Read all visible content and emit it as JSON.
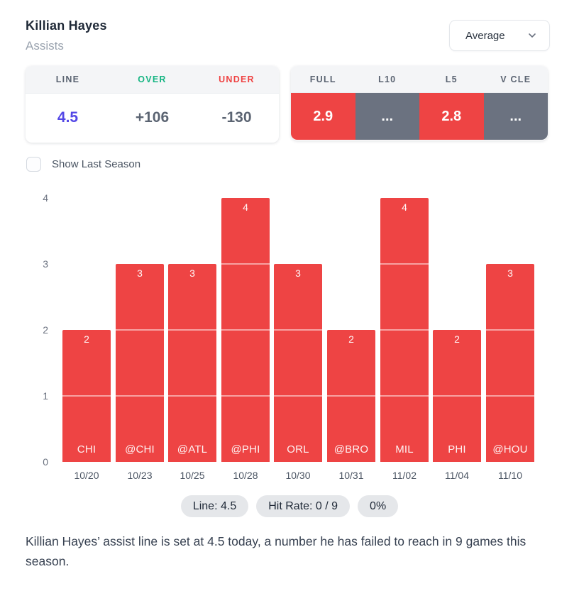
{
  "header": {
    "player": "Killian Hayes",
    "stat": "Assists",
    "average_dropdown": "Average"
  },
  "odds_panel": {
    "columns": [
      {
        "label": "LINE",
        "label_color": "#5b6472",
        "value": "4.5",
        "value_color": "#5347e6"
      },
      {
        "label": "OVER",
        "label_color": "#17b583",
        "value": "+106",
        "value_color": "#5b6472"
      },
      {
        "label": "UNDER",
        "label_color": "#ef4444",
        "value": "-130",
        "value_color": "#5b6472"
      }
    ]
  },
  "splits_panel": {
    "columns": [
      {
        "label": "FULL",
        "value": "2.9",
        "cell_color": "#ee4444"
      },
      {
        "label": "L10",
        "value": "...",
        "cell_color": "#6b7280"
      },
      {
        "label": "L5",
        "value": "2.8",
        "cell_color": "#ee4444"
      },
      {
        "label": "V CLE",
        "value": "...",
        "cell_color": "#6b7280"
      }
    ]
  },
  "show_last_season_label": "Show Last Season",
  "chart_data": {
    "type": "bar",
    "title": "",
    "categories": [
      "CHI",
      "@CHI",
      "@ATL",
      "@PHI",
      "ORL",
      "@BRO",
      "MIL",
      "PHI",
      "@HOU"
    ],
    "x_dates": [
      "10/20",
      "10/23",
      "10/25",
      "10/28",
      "10/30",
      "10/31",
      "11/02",
      "11/04",
      "11/10"
    ],
    "values": [
      2,
      3,
      3,
      4,
      3,
      2,
      4,
      2,
      3
    ],
    "xlabel": "",
    "ylabel": "",
    "ylim": [
      0,
      4
    ],
    "yticks": [
      0,
      1,
      2,
      3,
      4
    ],
    "grid": false,
    "legend": false,
    "bar_color": "#ee4444",
    "segment_line_color": "rgba(255,255,255,0.5)"
  },
  "pills": [
    "Line: 4.5",
    "Hit Rate: 0 / 9",
    "0%"
  ],
  "summary": "Killian Hayes’ assist line is set at 4.5 today, a number he has failed to reach in 9 games this season.",
  "colors": {
    "accent_red": "#ee4444",
    "accent_gray": "#6b7280",
    "accent_indigo": "#5347e6",
    "accent_green": "#17b583",
    "panel_header_bg": "#f4f5f7",
    "pill_bg": "#e5e7ea"
  }
}
